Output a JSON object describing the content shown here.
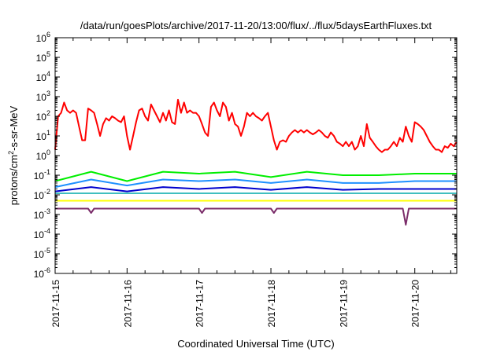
{
  "chart_data": {
    "type": "line",
    "title": "/data/run/goesPlots/archive/2017-11-20/13:00/flux/../flux/5daysEarthFluxes.txt",
    "xlabel": "Coordinated Universal Time (UTC)",
    "ylabel": "protons/cm²-s-sr-MeV",
    "ylabel_parts": {
      "pre": "protons/cm",
      "sup": "2",
      "post": "-s-sr-MeV"
    },
    "yscale": "log",
    "ylim": [
      1e-06,
      1000000.0
    ],
    "xlim": [
      "2017-11-15 00:00",
      "2017-11-20 14:00"
    ],
    "grid": false,
    "x_ticks": [
      "2017-11-15",
      "2017-11-16",
      "2017-11-17",
      "2017-11-18",
      "2017-11-19",
      "2017-11-20"
    ],
    "y_ticks": [
      {
        "base": "10",
        "exp": "-6"
      },
      {
        "base": "10",
        "exp": "-5"
      },
      {
        "base": "10",
        "exp": "-4"
      },
      {
        "base": "10",
        "exp": "-3"
      },
      {
        "base": "10",
        "exp": "-2"
      },
      {
        "base": "10",
        "exp": "-1"
      },
      {
        "base": "10",
        "exp": "0"
      },
      {
        "base": "10",
        "exp": "1"
      },
      {
        "base": "10",
        "exp": "2"
      },
      {
        "base": "10",
        "exp": "3"
      },
      {
        "base": "10",
        "exp": "4"
      },
      {
        "base": "10",
        "exp": "5"
      },
      {
        "base": "10",
        "exp": "6"
      }
    ],
    "series": [
      {
        "color": "#ff0000",
        "width": 2,
        "values": [
          {
            "x": "2017-11-15 00:00",
            "y": 2
          },
          {
            "x": "2017-11-15 01:00",
            "y": 100
          },
          {
            "x": "2017-11-15 02:00",
            "y": 150
          },
          {
            "x": "2017-11-15 03:00",
            "y": 500
          },
          {
            "x": "2017-11-15 04:00",
            "y": 200
          },
          {
            "x": "2017-11-15 05:00",
            "y": 150
          },
          {
            "x": "2017-11-15 06:00",
            "y": 200
          },
          {
            "x": "2017-11-15 07:00",
            "y": 150
          },
          {
            "x": "2017-11-15 08:00",
            "y": 30
          },
          {
            "x": "2017-11-15 09:00",
            "y": 6
          },
          {
            "x": "2017-11-15 10:00",
            "y": 6
          },
          {
            "x": "2017-11-15 11:00",
            "y": 250
          },
          {
            "x": "2017-11-15 12:00",
            "y": 200
          },
          {
            "x": "2017-11-15 13:00",
            "y": 150
          },
          {
            "x": "2017-11-15 14:00",
            "y": 40
          },
          {
            "x": "2017-11-15 15:00",
            "y": 10
          },
          {
            "x": "2017-11-15 16:00",
            "y": 40
          },
          {
            "x": "2017-11-15 17:00",
            "y": 80
          },
          {
            "x": "2017-11-15 18:00",
            "y": 60
          },
          {
            "x": "2017-11-15 19:00",
            "y": 100
          },
          {
            "x": "2017-11-15 20:00",
            "y": 80
          },
          {
            "x": "2017-11-15 21:00",
            "y": 60
          },
          {
            "x": "2017-11-15 22:00",
            "y": 50
          },
          {
            "x": "2017-11-15 23:00",
            "y": 100
          },
          {
            "x": "2017-11-16 00:00",
            "y": 10
          },
          {
            "x": "2017-11-16 01:00",
            "y": 2
          },
          {
            "x": "2017-11-16 02:00",
            "y": 10
          },
          {
            "x": "2017-11-16 03:00",
            "y": 50
          },
          {
            "x": "2017-11-16 04:00",
            "y": 200
          },
          {
            "x": "2017-11-16 05:00",
            "y": 250
          },
          {
            "x": "2017-11-16 06:00",
            "y": 100
          },
          {
            "x": "2017-11-16 07:00",
            "y": 60
          },
          {
            "x": "2017-11-16 08:00",
            "y": 400
          },
          {
            "x": "2017-11-16 09:00",
            "y": 200
          },
          {
            "x": "2017-11-16 10:00",
            "y": 100
          },
          {
            "x": "2017-11-16 11:00",
            "y": 50
          },
          {
            "x": "2017-11-16 12:00",
            "y": 150
          },
          {
            "x": "2017-11-16 13:00",
            "y": 60
          },
          {
            "x": "2017-11-16 14:00",
            "y": 200
          },
          {
            "x": "2017-11-16 15:00",
            "y": 50
          },
          {
            "x": "2017-11-16 16:00",
            "y": 40
          },
          {
            "x": "2017-11-16 17:00",
            "y": 700
          },
          {
            "x": "2017-11-16 18:00",
            "y": 150
          },
          {
            "x": "2017-11-16 19:00",
            "y": 500
          },
          {
            "x": "2017-11-16 20:00",
            "y": 150
          },
          {
            "x": "2017-11-16 21:00",
            "y": 200
          },
          {
            "x": "2017-11-16 22:00",
            "y": 150
          },
          {
            "x": "2017-11-16 23:00",
            "y": 150
          },
          {
            "x": "2017-11-17 00:00",
            "y": 100
          },
          {
            "x": "2017-11-17 01:00",
            "y": 40
          },
          {
            "x": "2017-11-17 02:00",
            "y": 15
          },
          {
            "x": "2017-11-17 03:00",
            "y": 10
          },
          {
            "x": "2017-11-17 04:00",
            "y": 300
          },
          {
            "x": "2017-11-17 05:00",
            "y": 500
          },
          {
            "x": "2017-11-17 06:00",
            "y": 200
          },
          {
            "x": "2017-11-17 07:00",
            "y": 100
          },
          {
            "x": "2017-11-17 08:00",
            "y": 500
          },
          {
            "x": "2017-11-17 09:00",
            "y": 300
          },
          {
            "x": "2017-11-17 10:00",
            "y": 60
          },
          {
            "x": "2017-11-17 11:00",
            "y": 150
          },
          {
            "x": "2017-11-17 12:00",
            "y": 40
          },
          {
            "x": "2017-11-17 13:00",
            "y": 30
          },
          {
            "x": "2017-11-17 14:00",
            "y": 10
          },
          {
            "x": "2017-11-17 15:00",
            "y": 30
          },
          {
            "x": "2017-11-17 16:00",
            "y": 150
          },
          {
            "x": "2017-11-17 17:00",
            "y": 100
          },
          {
            "x": "2017-11-17 18:00",
            "y": 150
          },
          {
            "x": "2017-11-17 19:00",
            "y": 100
          },
          {
            "x": "2017-11-17 20:00",
            "y": 80
          },
          {
            "x": "2017-11-17 21:00",
            "y": 60
          },
          {
            "x": "2017-11-17 22:00",
            "y": 100
          },
          {
            "x": "2017-11-17 23:00",
            "y": 150
          },
          {
            "x": "2017-11-18 00:00",
            "y": 30
          },
          {
            "x": "2017-11-18 01:00",
            "y": 6
          },
          {
            "x": "2017-11-18 02:00",
            "y": 2
          },
          {
            "x": "2017-11-18 03:00",
            "y": 5
          },
          {
            "x": "2017-11-18 04:00",
            "y": 6
          },
          {
            "x": "2017-11-18 05:00",
            "y": 5
          },
          {
            "x": "2017-11-18 06:00",
            "y": 10
          },
          {
            "x": "2017-11-18 07:00",
            "y": 15
          },
          {
            "x": "2017-11-18 08:00",
            "y": 20
          },
          {
            "x": "2017-11-18 09:00",
            "y": 15
          },
          {
            "x": "2017-11-18 10:00",
            "y": 20
          },
          {
            "x": "2017-11-18 11:00",
            "y": 15
          },
          {
            "x": "2017-11-18 12:00",
            "y": 20
          },
          {
            "x": "2017-11-18 13:00",
            "y": 15
          },
          {
            "x": "2017-11-18 14:00",
            "y": 12
          },
          {
            "x": "2017-11-18 15:00",
            "y": 15
          },
          {
            "x": "2017-11-18 16:00",
            "y": 20
          },
          {
            "x": "2017-11-18 17:00",
            "y": 15
          },
          {
            "x": "2017-11-18 18:00",
            "y": 10
          },
          {
            "x": "2017-11-18 19:00",
            "y": 8
          },
          {
            "x": "2017-11-18 20:00",
            "y": 15
          },
          {
            "x": "2017-11-18 21:00",
            "y": 10
          },
          {
            "x": "2017-11-18 22:00",
            "y": 5
          },
          {
            "x": "2017-11-18 23:00",
            "y": 4
          },
          {
            "x": "2017-11-19 00:00",
            "y": 3
          },
          {
            "x": "2017-11-19 01:00",
            "y": 5
          },
          {
            "x": "2017-11-19 02:00",
            "y": 3
          },
          {
            "x": "2017-11-19 03:00",
            "y": 5
          },
          {
            "x": "2017-11-19 04:00",
            "y": 2
          },
          {
            "x": "2017-11-19 05:00",
            "y": 3
          },
          {
            "x": "2017-11-19 06:00",
            "y": 10
          },
          {
            "x": "2017-11-19 07:00",
            "y": 3
          },
          {
            "x": "2017-11-19 08:00",
            "y": 40
          },
          {
            "x": "2017-11-19 09:00",
            "y": 8
          },
          {
            "x": "2017-11-19 10:00",
            "y": 5
          },
          {
            "x": "2017-11-19 11:00",
            "y": 3
          },
          {
            "x": "2017-11-19 12:00",
            "y": 2
          },
          {
            "x": "2017-11-19 13:00",
            "y": 1.5
          },
          {
            "x": "2017-11-19 14:00",
            "y": 2
          },
          {
            "x": "2017-11-19 15:00",
            "y": 2
          },
          {
            "x": "2017-11-19 16:00",
            "y": 3
          },
          {
            "x": "2017-11-19 17:00",
            "y": 5
          },
          {
            "x": "2017-11-19 18:00",
            "y": 3
          },
          {
            "x": "2017-11-19 19:00",
            "y": 8
          },
          {
            "x": "2017-11-19 20:00",
            "y": 5
          },
          {
            "x": "2017-11-19 21:00",
            "y": 30
          },
          {
            "x": "2017-11-19 22:00",
            "y": 10
          },
          {
            "x": "2017-11-19 23:00",
            "y": 5
          },
          {
            "x": "2017-11-20 00:00",
            "y": 50
          },
          {
            "x": "2017-11-20 01:00",
            "y": 40
          },
          {
            "x": "2017-11-20 02:00",
            "y": 30
          },
          {
            "x": "2017-11-20 03:00",
            "y": 20
          },
          {
            "x": "2017-11-20 04:00",
            "y": 10
          },
          {
            "x": "2017-11-20 05:00",
            "y": 5
          },
          {
            "x": "2017-11-20 06:00",
            "y": 3
          },
          {
            "x": "2017-11-20 07:00",
            "y": 2
          },
          {
            "x": "2017-11-20 08:00",
            "y": 2
          },
          {
            "x": "2017-11-20 09:00",
            "y": 1.5
          },
          {
            "x": "2017-11-20 10:00",
            "y": 3
          },
          {
            "x": "2017-11-20 11:00",
            "y": 2.5
          },
          {
            "x": "2017-11-20 12:00",
            "y": 4
          },
          {
            "x": "2017-11-20 13:00",
            "y": 3
          },
          {
            "x": "2017-11-20 14:00",
            "y": 5
          }
        ]
      },
      {
        "color": "#00ee00",
        "width": 2,
        "values": [
          {
            "x": "2017-11-15 00:00",
            "y": 0.05
          },
          {
            "x": "2017-11-15 12:00",
            "y": 0.15
          },
          {
            "x": "2017-11-16 00:00",
            "y": 0.05
          },
          {
            "x": "2017-11-16 12:00",
            "y": 0.15
          },
          {
            "x": "2017-11-17 00:00",
            "y": 0.12
          },
          {
            "x": "2017-11-17 12:00",
            "y": 0.15
          },
          {
            "x": "2017-11-18 00:00",
            "y": 0.08
          },
          {
            "x": "2017-11-18 12:00",
            "y": 0.15
          },
          {
            "x": "2017-11-19 00:00",
            "y": 0.1
          },
          {
            "x": "2017-11-19 12:00",
            "y": 0.1
          },
          {
            "x": "2017-11-20 00:00",
            "y": 0.12
          },
          {
            "x": "2017-11-20 14:00",
            "y": 0.12
          }
        ]
      },
      {
        "color": "#1e90ff",
        "width": 2,
        "values": [
          {
            "x": "2017-11-15 00:00",
            "y": 0.025
          },
          {
            "x": "2017-11-15 12:00",
            "y": 0.06
          },
          {
            "x": "2017-11-16 00:00",
            "y": 0.03
          },
          {
            "x": "2017-11-16 12:00",
            "y": 0.06
          },
          {
            "x": "2017-11-17 00:00",
            "y": 0.05
          },
          {
            "x": "2017-11-17 12:00",
            "y": 0.06
          },
          {
            "x": "2017-11-18 00:00",
            "y": 0.04
          },
          {
            "x": "2017-11-18 12:00",
            "y": 0.06
          },
          {
            "x": "2017-11-19 00:00",
            "y": 0.04
          },
          {
            "x": "2017-11-19 12:00",
            "y": 0.04
          },
          {
            "x": "2017-11-20 00:00",
            "y": 0.05
          },
          {
            "x": "2017-11-20 14:00",
            "y": 0.05
          }
        ]
      },
      {
        "color": "#0000cd",
        "width": 2,
        "values": [
          {
            "x": "2017-11-15 00:00",
            "y": 0.015
          },
          {
            "x": "2017-11-15 12:00",
            "y": 0.025
          },
          {
            "x": "2017-11-16 00:00",
            "y": 0.015
          },
          {
            "x": "2017-11-16 12:00",
            "y": 0.025
          },
          {
            "x": "2017-11-17 00:00",
            "y": 0.02
          },
          {
            "x": "2017-11-17 12:00",
            "y": 0.025
          },
          {
            "x": "2017-11-18 00:00",
            "y": 0.018
          },
          {
            "x": "2017-11-18 12:00",
            "y": 0.025
          },
          {
            "x": "2017-11-19 00:00",
            "y": 0.018
          },
          {
            "x": "2017-11-19 12:00",
            "y": 0.02
          },
          {
            "x": "2017-11-20 00:00",
            "y": 0.02
          },
          {
            "x": "2017-11-20 14:00",
            "y": 0.02
          }
        ]
      },
      {
        "color": "#00aaaa",
        "width": 1.5,
        "values": [
          {
            "x": "2017-11-15 00:00",
            "y": 0.012
          },
          {
            "x": "2017-11-16 00:00",
            "y": 0.012
          },
          {
            "x": "2017-11-17 00:00",
            "y": 0.012
          },
          {
            "x": "2017-11-18 00:00",
            "y": 0.012
          },
          {
            "x": "2017-11-19 00:00",
            "y": 0.012
          },
          {
            "x": "2017-11-20 00:00",
            "y": 0.012
          },
          {
            "x": "2017-11-20 14:00",
            "y": 0.012
          }
        ]
      },
      {
        "color": "#ffff00",
        "width": 2,
        "values": [
          {
            "x": "2017-11-15 00:00",
            "y": 0.005
          },
          {
            "x": "2017-11-16 00:00",
            "y": 0.005
          },
          {
            "x": "2017-11-17 00:00",
            "y": 0.005
          },
          {
            "x": "2017-11-18 00:00",
            "y": 0.005
          },
          {
            "x": "2017-11-19 00:00",
            "y": 0.005
          },
          {
            "x": "2017-11-20 00:00",
            "y": 0.005
          },
          {
            "x": "2017-11-20 14:00",
            "y": 0.005
          }
        ]
      },
      {
        "color": "#7b2d6a",
        "width": 2,
        "values": [
          {
            "x": "2017-11-15 00:00",
            "y": 0.002
          },
          {
            "x": "2017-11-15 11:00",
            "y": 0.002
          },
          {
            "x": "2017-11-15 12:00",
            "y": 0.0012
          },
          {
            "x": "2017-11-15 13:00",
            "y": 0.002
          },
          {
            "x": "2017-11-17 00:00",
            "y": 0.002
          },
          {
            "x": "2017-11-17 01:00",
            "y": 0.0012
          },
          {
            "x": "2017-11-17 02:00",
            "y": 0.002
          },
          {
            "x": "2017-11-18 00:00",
            "y": 0.002
          },
          {
            "x": "2017-11-18 01:00",
            "y": 0.0012
          },
          {
            "x": "2017-11-18 02:00",
            "y": 0.002
          },
          {
            "x": "2017-11-19 20:00",
            "y": 0.002
          },
          {
            "x": "2017-11-19 21:00",
            "y": 0.0003
          },
          {
            "x": "2017-11-19 22:00",
            "y": 0.002
          },
          {
            "x": "2017-11-20 14:00",
            "y": 0.002
          }
        ]
      }
    ]
  }
}
